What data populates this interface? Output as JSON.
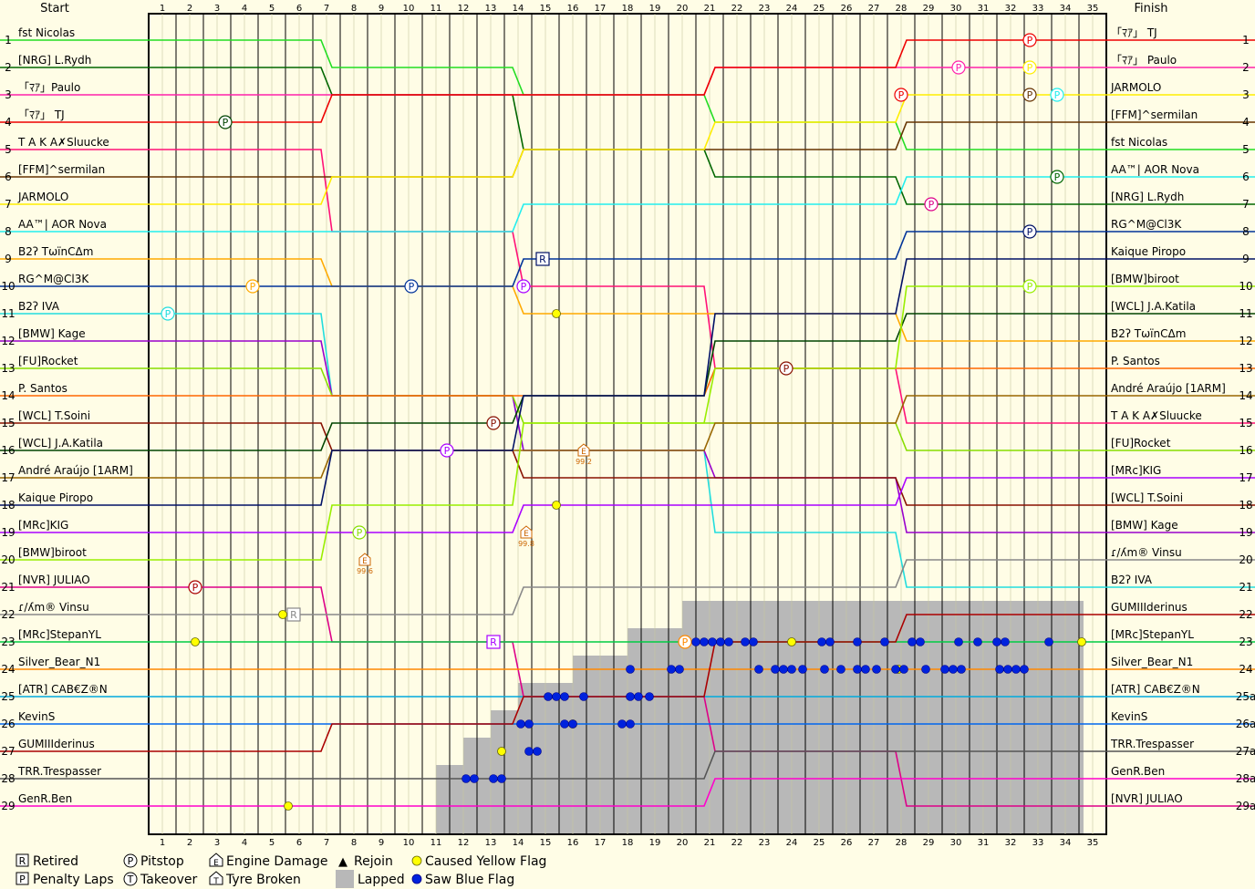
{
  "header": {
    "start": "Start",
    "finish": "Finish"
  },
  "chart_data": {
    "type": "line",
    "laps": 35,
    "positions": 29,
    "start_grid": [
      {
        "name": "fst Nicolas",
        "color": "#22dd22"
      },
      {
        "name": "[NRG] L.Rydh",
        "color": "#006600"
      },
      {
        "name": "「ﾏｱ」Paulo",
        "color": "#ff22aa"
      },
      {
        "name": "「ﾏｱ」 TJ",
        "color": "#ee0000"
      },
      {
        "name": "T A K A✗Sluucke",
        "color": "#ff1177"
      },
      {
        "name": "[FFM]^sermilan",
        "color": "#663300"
      },
      {
        "name": "JARMOLO",
        "color": "#ffee00"
      },
      {
        "name": "AA™| AOR Nova",
        "color": "#22eeee"
      },
      {
        "name": "B2ʔ TωïnCΔm",
        "color": "#ffaa00"
      },
      {
        "name": "RG^M@Cl3K",
        "color": "#003399"
      },
      {
        "name": "B2ʔ IVA",
        "color": "#22dddd"
      },
      {
        "name": "[BMW] Kage",
        "color": "#9900cc"
      },
      {
        "name": "[FU]Rocket",
        "color": "#88dd00"
      },
      {
        "name": "P. Santos",
        "color": "#ff6600"
      },
      {
        "name": "[WCL] T.Soini",
        "color": "#881100"
      },
      {
        "name": "[WCL] J.A.Katila",
        "color": "#004400"
      },
      {
        "name": "André Araújo [1ARM]",
        "color": "#996600"
      },
      {
        "name": "Kaique Piropo",
        "color": "#001166"
      },
      {
        "name": "[MRc]KIG",
        "color": "#aa00ff"
      },
      {
        "name": "[BMW]biroot",
        "color": "#99ee00"
      },
      {
        "name": "[NVR] JULIAO",
        "color": "#dd0088"
      },
      {
        "name": "ɾ/ʎm® Vinsu",
        "color": "#888888"
      },
      {
        "name": "[MRc]StepanYL",
        "color": "#00cc44"
      },
      {
        "name": "Silver_Bear_N1",
        "color": "#ff8800"
      },
      {
        "name": "[ATR] CAB€Z®N",
        "color": "#00aadd"
      },
      {
        "name": "KevinS",
        "color": "#0066ee"
      },
      {
        "name": "GUMIIIderinus",
        "color": "#aa0000"
      },
      {
        "name": "TRR.Trespasser",
        "color": "#555555"
      },
      {
        "name": "GenR.Ben",
        "color": "#ff00cc"
      }
    ],
    "finish_order": [
      "「ﾏｱ」 TJ",
      "「ﾏｱ」 Paulo",
      "JARMOLO",
      "[FFM]^sermilan",
      "fst Nicolas",
      "AA™| AOR Nova",
      "[NRG] L.Rydh",
      "RG^M@Cl3K",
      "Kaique Piropo",
      "[BMW]biroot",
      "[WCL] J.A.Katila",
      "B2ʔ TωïnCΔm",
      "P. Santos",
      "André Araújo [1ARM]",
      "T A K A✗Sluucke",
      "[FU]Rocket",
      "[MRc]KIG",
      "[WCL] T.Soini",
      "[BMW] Kage",
      "ɾ/ʎm® Vinsu",
      "B2ʔ IVA",
      "GUMIIIderinus",
      "[MRc]StepanYL",
      "Silver_Bear_N1",
      "[ATR] CAB€Z®N",
      "KevinS",
      "TRR.Trespasser",
      "GenR.Ben",
      "[NVR] JULIAO"
    ],
    "finish_pos_labels": [
      "1",
      "2",
      "3",
      "4",
      "5",
      "6",
      "7",
      "8",
      "9",
      "10",
      "11",
      "12",
      "13",
      "14",
      "15",
      "16",
      "17",
      "18",
      "19",
      "20",
      "21",
      "22",
      "23",
      "24",
      "25a",
      "26a",
      "27a",
      "28a",
      "29a"
    ],
    "lapped_from_lap": [
      null,
      null,
      null,
      null,
      null,
      null,
      null,
      null,
      null,
      null,
      null,
      null,
      null,
      null,
      null,
      null,
      null,
      null,
      null,
      null,
      null,
      20,
      18,
      16,
      14,
      13,
      12,
      11,
      11
    ],
    "pitstops": [
      {
        "driver": "「ﾏｱ」 TJ",
        "lap": 32.7,
        "pos": 1
      },
      {
        "driver": "「ﾏｱ」Paulo",
        "lap": 30.1,
        "pos": 2
      },
      {
        "driver": "JARMOLO",
        "lap": 32.7,
        "pos": 2
      },
      {
        "driver": "「ﾏｱ」 TJ",
        "lap": 28,
        "pos": 3
      },
      {
        "driver": "[FFM]^sermilan",
        "lap": 32.7,
        "pos": 3
      },
      {
        "driver": "AA™| AOR Nova",
        "lap": 33.7,
        "pos": 3
      },
      {
        "driver": "[WCL] J.A.Katila",
        "lap": 3.3,
        "pos": 4
      },
      {
        "driver": "[NRG] L.Rydh",
        "lap": 33.7,
        "pos": 6
      },
      {
        "driver": "[NVR] JULIAO",
        "lap": 29.1,
        "pos": 7
      },
      {
        "driver": "Kaique Piropo",
        "lap": 32.7,
        "pos": 8
      },
      {
        "driver": "B2ʔ TωïnCΔm",
        "lap": 4.3,
        "pos": 10
      },
      {
        "driver": "RG^M@Cl3K",
        "lap": 10.1,
        "pos": 10
      },
      {
        "driver": "[MRc]KIG",
        "lap": 14.2,
        "pos": 10
      },
      {
        "driver": "[BMW]biroot",
        "lap": 32.7,
        "pos": 10
      },
      {
        "driver": "B2ʔ IVA",
        "lap": 1.2,
        "pos": 11
      },
      {
        "driver": "[WCL] T.Soini",
        "lap": 23.8,
        "pos": 13
      },
      {
        "driver": "[WCL] T.Soini",
        "lap": 13.1,
        "pos": 15
      },
      {
        "driver": "[MRc]KIG",
        "lap": 11.4,
        "pos": 16
      },
      {
        "driver": "[FU]Rocket",
        "lap": 8.2,
        "pos": 19
      },
      {
        "driver": "GUMIIIderinus",
        "lap": 2.2,
        "pos": 21
      },
      {
        "driver": "Silver_Bear_N1",
        "lap": 20.1,
        "pos": 23
      }
    ],
    "retired": [
      {
        "driver": "Kaique Piropo",
        "lap": 14.9,
        "pos": 9
      },
      {
        "driver": "[MRc]KIG",
        "lap": 13.1,
        "pos": 23
      },
      {
        "driver": "ɾ/ʎm® Vinsu",
        "lap": 5.8,
        "pos": 22
      }
    ],
    "engine_damage": [
      {
        "lap": 16.4,
        "pos": 16,
        "note": "99.2"
      },
      {
        "lap": 14.3,
        "pos": 19,
        "note": "99.8"
      },
      {
        "lap": 8.4,
        "pos": 20,
        "note": "99.6"
      }
    ],
    "caused_yellow_flag": [
      {
        "lap": 15.4,
        "pos": 11
      },
      {
        "lap": 15.4,
        "pos": 18
      },
      {
        "lap": 2.2,
        "pos": 23
      },
      {
        "lap": 5.6,
        "pos": 29
      },
      {
        "lap": 5.4,
        "pos": 22
      },
      {
        "lap": 24.0,
        "pos": 23
      },
      {
        "lap": 34.6,
        "pos": 23
      },
      {
        "lap": 27.9,
        "pos": 24
      },
      {
        "lap": 16.0,
        "pos": 26
      },
      {
        "lap": 13.4,
        "pos": 27
      }
    ],
    "saw_blue_flag_rows": [
      {
        "pos": 23,
        "laps": [
          20.5,
          20.8,
          21.1,
          21.4,
          21.7,
          22.3,
          22.6,
          25.1,
          25.4,
          26.4,
          27.4,
          28.4,
          28.7,
          30.1,
          30.8,
          31.5,
          31.8,
          33.4
        ]
      },
      {
        "pos": 24,
        "laps": [
          18.1,
          19.6,
          19.9,
          22.8,
          23.4,
          23.7,
          24.0,
          24.4,
          25.2,
          25.8,
          26.4,
          26.7,
          27.1,
          27.8,
          28.1,
          28.9,
          29.6,
          29.9,
          30.2,
          31.6,
          31.9,
          32.2,
          32.5
        ]
      },
      {
        "pos": 25,
        "laps": [
          15.1,
          15.4,
          15.7,
          16.4,
          18.1,
          18.4,
          18.8
        ]
      },
      {
        "pos": 26,
        "laps": [
          14.1,
          14.4,
          15.7,
          16.0,
          17.8,
          18.1
        ]
      },
      {
        "pos": 27,
        "laps": [
          14.4,
          14.7
        ]
      },
      {
        "pos": 28,
        "laps": [
          12.1,
          12.4,
          13.1,
          13.4
        ]
      }
    ],
    "legend": [
      {
        "symbol": "R",
        "label": "Retired"
      },
      {
        "symbol": "P",
        "label": "Penalty Laps"
      },
      {
        "symbol": "P",
        "label": "Pitstop"
      },
      {
        "symbol": "T",
        "label": "Takeover"
      },
      {
        "symbol": "E",
        "label": "Engine Damage"
      },
      {
        "symbol": "T",
        "label": "Tyre Broken"
      },
      {
        "symbol": "▲",
        "label": "Rejoin"
      },
      {
        "symbol": "",
        "label": "Lapped"
      },
      {
        "symbol": "",
        "label": "Caused Yellow Flag"
      },
      {
        "symbol": "",
        "label": "Saw Blue Flag"
      }
    ]
  }
}
